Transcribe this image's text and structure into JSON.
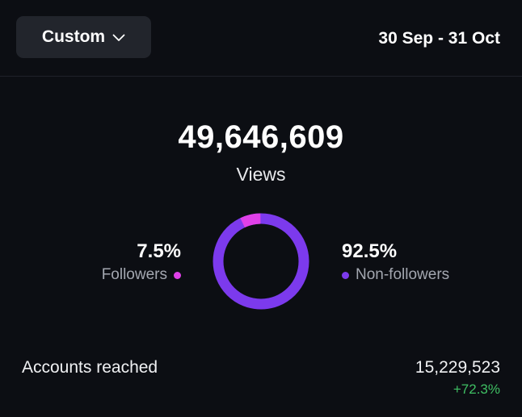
{
  "header": {
    "range_button_label": "Custom",
    "date_range": "30 Sep - 31 Oct"
  },
  "summary": {
    "total_value": "49,646,609",
    "total_label": "Views"
  },
  "breakdown": {
    "followers": {
      "percent_text": "7.5%",
      "label": "Followers",
      "share": 0.075,
      "color": "#e040e8"
    },
    "non_followers": {
      "percent_text": "92.5%",
      "label": "Non-followers",
      "share": 0.925,
      "color": "#7c3aed"
    }
  },
  "accounts_reached": {
    "label": "Accounts reached",
    "value": "15,229,523",
    "change": "+72.3%",
    "change_color": "#3fbf63"
  }
}
